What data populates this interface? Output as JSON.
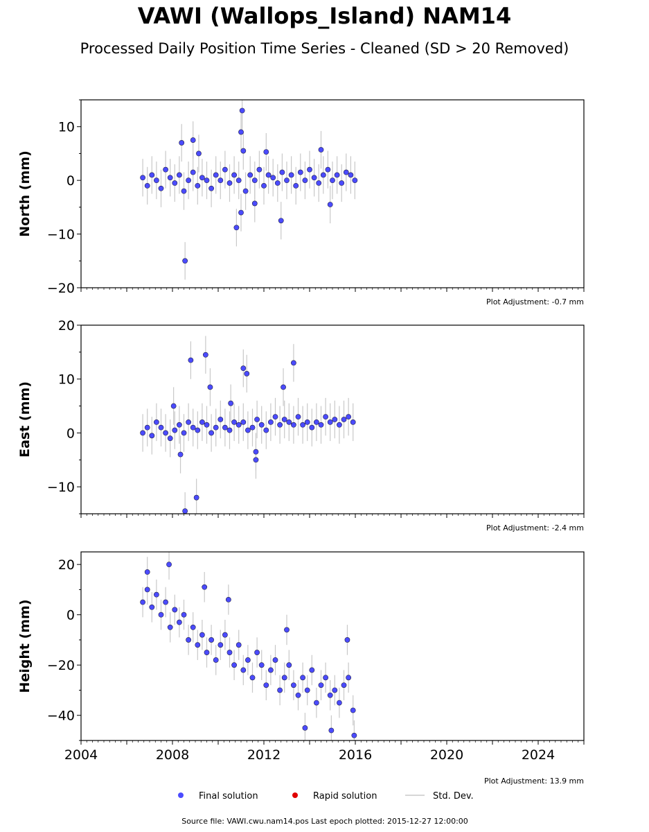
{
  "title": "VAWI (Wallops_Island) NAM14",
  "subtitle": "Processed Daily Position Time Series - Cleaned (SD > 20 Removed)",
  "colors": {
    "final_solution": "#4b4bff",
    "rapid_solution": "#e00000",
    "std_dev": "#c8c8c8",
    "axis": "#000000"
  },
  "legend": {
    "final": "Final solution",
    "rapid": "Rapid solution",
    "std": "Std. Dev."
  },
  "source_text": "Source file: VAWI.cwu.nam14.pos  Last epoch plotted: 2015-12-27 12:00:00",
  "chart_data": [
    {
      "type": "scatter",
      "ylabel": "North (mm)",
      "xlim": [
        2004,
        2026
      ],
      "ylim": [
        -20,
        15
      ],
      "yticks": [
        -20,
        -10,
        0,
        10
      ],
      "ytick_labels": [
        "−20",
        "−10",
        "0",
        "10"
      ],
      "adjustment": "Plot Adjustment: -0.7 mm",
      "series": [
        {
          "name": "Final solution",
          "x": [
            2006.7,
            2006.9,
            2007.1,
            2007.3,
            2007.5,
            2007.7,
            2007.9,
            2008.1,
            2008.3,
            2008.5,
            2008.7,
            2008.9,
            2009.1,
            2009.3,
            2009.5,
            2009.7,
            2009.9,
            2010.1,
            2010.3,
            2010.5,
            2010.7,
            2010.9,
            2011.0,
            2011.05,
            2011.2,
            2011.4,
            2011.6,
            2011.8,
            2012.0,
            2012.2,
            2012.4,
            2012.6,
            2012.8,
            2013.0,
            2013.2,
            2013.4,
            2013.6,
            2013.8,
            2014.0,
            2014.2,
            2014.4,
            2014.6,
            2014.8,
            2015.0,
            2015.2,
            2015.4,
            2015.6,
            2015.8,
            2015.98,
            2008.55,
            2008.9,
            2008.4,
            2009.15,
            2010.8,
            2011.0,
            2011.1,
            2012.75,
            2014.9,
            2011.6,
            2012.1,
            2014.5
          ],
          "y": [
            0.5,
            -1.0,
            1.0,
            0.0,
            -1.5,
            2.0,
            0.5,
            -0.5,
            1.0,
            -2.0,
            0.0,
            1.5,
            -1.0,
            0.5,
            0.0,
            -1.5,
            1.0,
            0.0,
            2.0,
            -0.5,
            1.0,
            0.0,
            9.0,
            13.0,
            -2.0,
            1.0,
            0.0,
            2.0,
            -1.0,
            1.0,
            0.5,
            -0.5,
            1.5,
            0.0,
            1.0,
            -1.0,
            1.5,
            0.0,
            2.0,
            0.5,
            -0.5,
            1.0,
            2.0,
            0.0,
            1.0,
            -0.5,
            1.5,
            1.0,
            0.0,
            -15.0,
            7.5,
            7.0,
            5.0,
            -8.8,
            -6.0,
            5.5,
            -7.5,
            -4.5,
            -4.3,
            5.3,
            5.7
          ]
        },
        {
          "name": "Rapid solution",
          "x": [],
          "y": []
        }
      ]
    },
    {
      "type": "scatter",
      "ylabel": "East (mm)",
      "xlim": [
        2004,
        2026
      ],
      "ylim": [
        -15,
        20
      ],
      "yticks": [
        -10,
        0,
        10,
        20
      ],
      "ytick_labels": [
        "−10",
        "0",
        "10",
        "20"
      ],
      "adjustment": "Plot Adjustment: -2.4 mm",
      "series": [
        {
          "name": "Final solution",
          "x": [
            2006.7,
            2006.9,
            2007.1,
            2007.3,
            2007.5,
            2007.7,
            2007.9,
            2008.1,
            2008.3,
            2008.5,
            2008.7,
            2008.9,
            2009.1,
            2009.3,
            2009.5,
            2009.7,
            2009.9,
            2010.1,
            2010.3,
            2010.5,
            2010.7,
            2010.9,
            2011.1,
            2011.3,
            2011.5,
            2011.7,
            2011.9,
            2012.1,
            2012.3,
            2012.5,
            2012.7,
            2012.9,
            2013.1,
            2013.3,
            2013.5,
            2013.7,
            2013.9,
            2014.1,
            2014.3,
            2014.5,
            2014.7,
            2014.9,
            2015.1,
            2015.3,
            2015.5,
            2015.7,
            2015.9,
            2008.05,
            2008.55,
            2008.8,
            2009.05,
            2009.45,
            2009.65,
            2010.55,
            2011.1,
            2011.25,
            2012.85,
            2013.3,
            2008.35,
            2011.65,
            2011.65
          ],
          "y": [
            0.0,
            1.0,
            -0.5,
            2.0,
            1.0,
            0.0,
            -1.0,
            0.5,
            1.5,
            0.0,
            2.0,
            1.0,
            0.5,
            2.0,
            1.5,
            0.0,
            1.0,
            2.5,
            1.0,
            0.5,
            2.0,
            1.5,
            2.0,
            0.5,
            1.0,
            2.5,
            1.5,
            0.5,
            2.0,
            3.0,
            1.5,
            2.5,
            2.0,
            1.5,
            3.0,
            1.5,
            2.0,
            1.0,
            2.0,
            1.5,
            3.0,
            2.0,
            2.5,
            1.5,
            2.5,
            3.0,
            2.0,
            5.0,
            -14.5,
            13.5,
            -12.0,
            14.5,
            8.5,
            5.5,
            12.0,
            11.0,
            8.5,
            13.0,
            -4.0,
            -5.0,
            -3.5
          ]
        },
        {
          "name": "Rapid solution",
          "x": [],
          "y": []
        }
      ]
    },
    {
      "type": "scatter",
      "ylabel": "Height (mm)",
      "xlabel": "",
      "xlim": [
        2004,
        2026
      ],
      "ylim": [
        -50,
        25
      ],
      "yticks": [
        -40,
        -20,
        0,
        20
      ],
      "ytick_labels": [
        "−40",
        "−20",
        "0",
        "20"
      ],
      "xticks": [
        2004,
        2008,
        2012,
        2016,
        2020,
        2024
      ],
      "xtick_labels": [
        "2004",
        "2008",
        "2012",
        "2016",
        "2020",
        "2024"
      ],
      "adjustment": "Plot Adjustment: 13.9 mm",
      "series": [
        {
          "name": "Final solution",
          "x": [
            2006.7,
            2006.9,
            2007.1,
            2007.3,
            2007.5,
            2007.7,
            2007.9,
            2008.1,
            2008.3,
            2008.5,
            2008.7,
            2008.9,
            2009.1,
            2009.3,
            2009.5,
            2009.7,
            2009.9,
            2010.1,
            2010.3,
            2010.5,
            2010.7,
            2010.9,
            2011.1,
            2011.3,
            2011.5,
            2011.7,
            2011.9,
            2012.1,
            2012.3,
            2012.5,
            2012.7,
            2012.9,
            2013.1,
            2013.3,
            2013.5,
            2013.7,
            2013.9,
            2014.1,
            2014.3,
            2014.5,
            2014.7,
            2014.9,
            2015.1,
            2015.3,
            2015.5,
            2015.7,
            2015.9,
            2006.9,
            2007.85,
            2009.4,
            2010.45,
            2013.0,
            2013.8,
            2014.95,
            2015.65,
            2015.95
          ],
          "y": [
            5.0,
            10.0,
            3.0,
            8.0,
            0.0,
            5.0,
            -5.0,
            2.0,
            -3.0,
            0.0,
            -10.0,
            -5.0,
            -12.0,
            -8.0,
            -15.0,
            -10.0,
            -18.0,
            -12.0,
            -8.0,
            -15.0,
            -20.0,
            -12.0,
            -22.0,
            -18.0,
            -25.0,
            -15.0,
            -20.0,
            -28.0,
            -22.0,
            -18.0,
            -30.0,
            -25.0,
            -20.0,
            -28.0,
            -32.0,
            -25.0,
            -30.0,
            -22.0,
            -35.0,
            -28.0,
            -25.0,
            -32.0,
            -30.0,
            -35.0,
            -28.0,
            -25.0,
            -38.0,
            17.0,
            20.0,
            11.0,
            6.0,
            -6.0,
            -45.0,
            -46.0,
            -10.0,
            -48.0
          ]
        },
        {
          "name": "Rapid solution",
          "x": [],
          "y": []
        }
      ]
    }
  ]
}
